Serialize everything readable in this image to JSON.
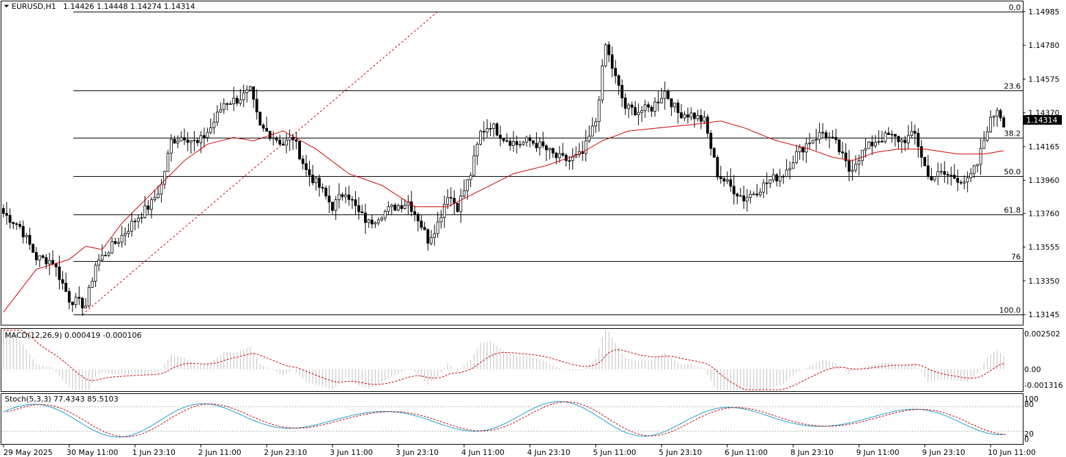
{
  "main": {
    "symbol": "EURUSD,H1",
    "ohlc": "1.14426 1.14448 1.14274 1.14314",
    "price_ticks": [
      "1.14985",
      "1.14780",
      "1.14575",
      "1.14370",
      "1.14165",
      "1.13960",
      "1.13760",
      "1.13555",
      "1.13350",
      "1.13145"
    ],
    "current_price": "1.14314",
    "fib_levels": [
      {
        "label": "0.0",
        "price": 1.14985
      },
      {
        "label": "23.6",
        "price": 1.14507
      },
      {
        "label": "38.2",
        "price": 1.14219
      },
      {
        "label": "50.0",
        "price": 1.13986
      },
      {
        "label": "61.8",
        "price": 1.13752
      },
      {
        "label": "76",
        "price": 1.1347
      },
      {
        "label": "100.0",
        "price": 1.13145
      }
    ]
  },
  "macd": {
    "title": "MACD(12,26,9) 0.000419 -0.000106",
    "ticks": [
      "0.002502",
      "0.00",
      "-0.001316"
    ]
  },
  "stoch": {
    "title": "Stoch(5,3,3) 77.4343 85.5103",
    "ticks": [
      "100",
      "80",
      "20",
      "0"
    ]
  },
  "time_labels": [
    "29 May 2025",
    "30 May 11:00",
    "1 Jun 23:10",
    "2 Jun 11:00",
    "2 Jun 23:10",
    "3 Jun 11:00",
    "3 Jun 23:10",
    "4 Jun 11:00",
    "4 Jun 23:10",
    "5 Jun 11:00",
    "5 Jun 23:10",
    "6 Jun 11:00",
    "8 Jun 23:10",
    "9 Jun 11:00",
    "9 Jun 23:10",
    "10 Jun 11:00"
  ],
  "colors": {
    "ma": "#cc0000",
    "current_price_bg": "#000000",
    "stoch_main": "#1a9fd0",
    "signal": "#cc0000",
    "macd_hist": "#c0c0c0"
  },
  "chart_data": {
    "type": "candlestick",
    "symbol": "EURUSD,H1",
    "ylim": [
      1.131,
      1.1503
    ],
    "close_anchors": [
      [
        0,
        1.1376
      ],
      [
        5,
        1.1368
      ],
      [
        10,
        1.1349
      ],
      [
        15,
        1.1347
      ],
      [
        20,
        1.1324
      ],
      [
        25,
        1.132
      ],
      [
        28,
        1.1345
      ],
      [
        32,
        1.1354
      ],
      [
        35,
        1.136
      ],
      [
        40,
        1.1372
      ],
      [
        45,
        1.1382
      ],
      [
        48,
        1.1393
      ],
      [
        51,
        1.142
      ],
      [
        55,
        1.1423
      ],
      [
        59,
        1.1418
      ],
      [
        63,
        1.1428
      ],
      [
        67,
        1.1443
      ],
      [
        71,
        1.1445
      ],
      [
        75,
        1.145
      ],
      [
        78,
        1.1428
      ],
      [
        82,
        1.1423
      ],
      [
        85,
        1.1418
      ],
      [
        88,
        1.1422
      ],
      [
        92,
        1.1402
      ],
      [
        96,
        1.1392
      ],
      [
        100,
        1.138
      ],
      [
        104,
        1.139
      ],
      [
        108,
        1.1376
      ],
      [
        111,
        1.137
      ],
      [
        115,
        1.1376
      ],
      [
        119,
        1.138
      ],
      [
        123,
        1.1383
      ],
      [
        126,
        1.1373
      ],
      [
        129,
        1.136
      ],
      [
        132,
        1.137
      ],
      [
        135,
        1.1388
      ],
      [
        138,
        1.138
      ],
      [
        142,
        1.14
      ],
      [
        145,
        1.1425
      ],
      [
        148,
        1.143
      ],
      [
        152,
        1.1422
      ],
      [
        156,
        1.1418
      ],
      [
        160,
        1.142
      ],
      [
        164,
        1.1416
      ],
      [
        168,
        1.141
      ],
      [
        172,
        1.1408
      ],
      [
        176,
        1.1412
      ],
      [
        180,
        1.1432
      ],
      [
        183,
        1.1478
      ],
      [
        186,
        1.1458
      ],
      [
        189,
        1.144
      ],
      [
        193,
        1.1438
      ],
      [
        197,
        1.144
      ],
      [
        201,
        1.145
      ],
      [
        205,
        1.1437
      ],
      [
        209,
        1.1436
      ],
      [
        213,
        1.1432
      ],
      [
        217,
        1.14
      ],
      [
        221,
        1.1392
      ],
      [
        225,
        1.1385
      ],
      [
        229,
        1.139
      ],
      [
        233,
        1.1396
      ],
      [
        237,
        1.14
      ],
      [
        241,
        1.1412
      ],
      [
        245,
        1.142
      ],
      [
        249,
        1.1425
      ],
      [
        253,
        1.1418
      ],
      [
        257,
        1.1402
      ],
      [
        261,
        1.1413
      ],
      [
        265,
        1.142
      ],
      [
        269,
        1.1423
      ],
      [
        273,
        1.142
      ],
      [
        277,
        1.1424
      ],
      [
        281,
        1.1398
      ],
      [
        285,
        1.14
      ],
      [
        289,
        1.1398
      ],
      [
        293,
        1.1395
      ],
      [
        296,
        1.1406
      ],
      [
        299,
        1.1428
      ],
      [
        302,
        1.144
      ],
      [
        304,
        1.1431
      ]
    ],
    "ma_anchors": [
      [
        0,
        1.1316
      ],
      [
        10,
        1.1342
      ],
      [
        20,
        1.1348
      ],
      [
        25,
        1.1356
      ],
      [
        30,
        1.1354
      ],
      [
        36,
        1.137
      ],
      [
        45,
        1.1388
      ],
      [
        55,
        1.1408
      ],
      [
        62,
        1.1418
      ],
      [
        70,
        1.1422
      ],
      [
        76,
        1.142
      ],
      [
        85,
        1.1426
      ],
      [
        95,
        1.1415
      ],
      [
        105,
        1.14
      ],
      [
        115,
        1.1393
      ],
      [
        125,
        1.138
      ],
      [
        135,
        1.138
      ],
      [
        145,
        1.139
      ],
      [
        155,
        1.14
      ],
      [
        165,
        1.1405
      ],
      [
        175,
        1.1412
      ],
      [
        182,
        1.142
      ],
      [
        190,
        1.1426
      ],
      [
        200,
        1.1428
      ],
      [
        210,
        1.143
      ],
      [
        218,
        1.1432
      ],
      [
        225,
        1.1428
      ],
      [
        235,
        1.142
      ],
      [
        245,
        1.1415
      ],
      [
        252,
        1.141
      ],
      [
        258,
        1.1408
      ],
      [
        265,
        1.1413
      ],
      [
        272,
        1.1415
      ],
      [
        280,
        1.1415
      ],
      [
        290,
        1.1412
      ],
      [
        298,
        1.1412
      ],
      [
        304,
        1.1414
      ]
    ]
  }
}
